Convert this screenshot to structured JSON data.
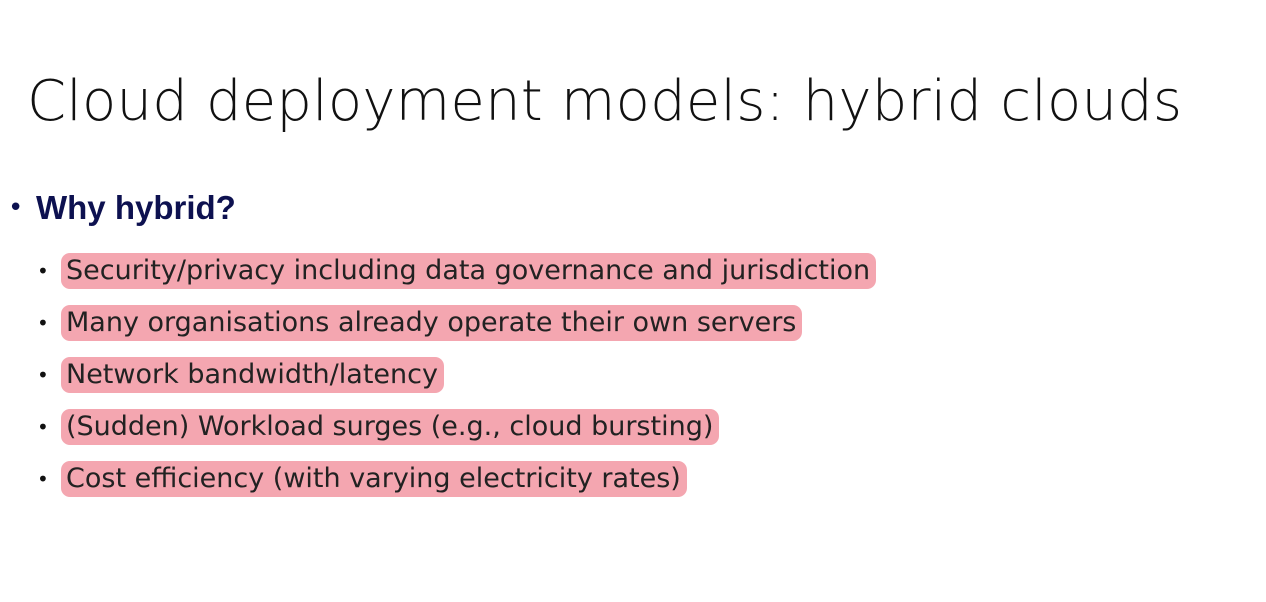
{
  "slide": {
    "title": "Cloud deployment models: hybrid clouds",
    "heading": "Why hybrid?",
    "bullet_glyph": "•",
    "items": [
      "Security/privacy including data governance and jurisdiction",
      "Many organisations already operate their own servers",
      "Network bandwidth/latency",
      "(Sudden) Workload surges (e.g., cloud bursting)",
      "Cost efficiency (with varying electricity rates)"
    ]
  },
  "colors": {
    "heading": "#0d1150",
    "highlight": "#f4a6b0",
    "text": "#222222",
    "background": "#ffffff"
  }
}
